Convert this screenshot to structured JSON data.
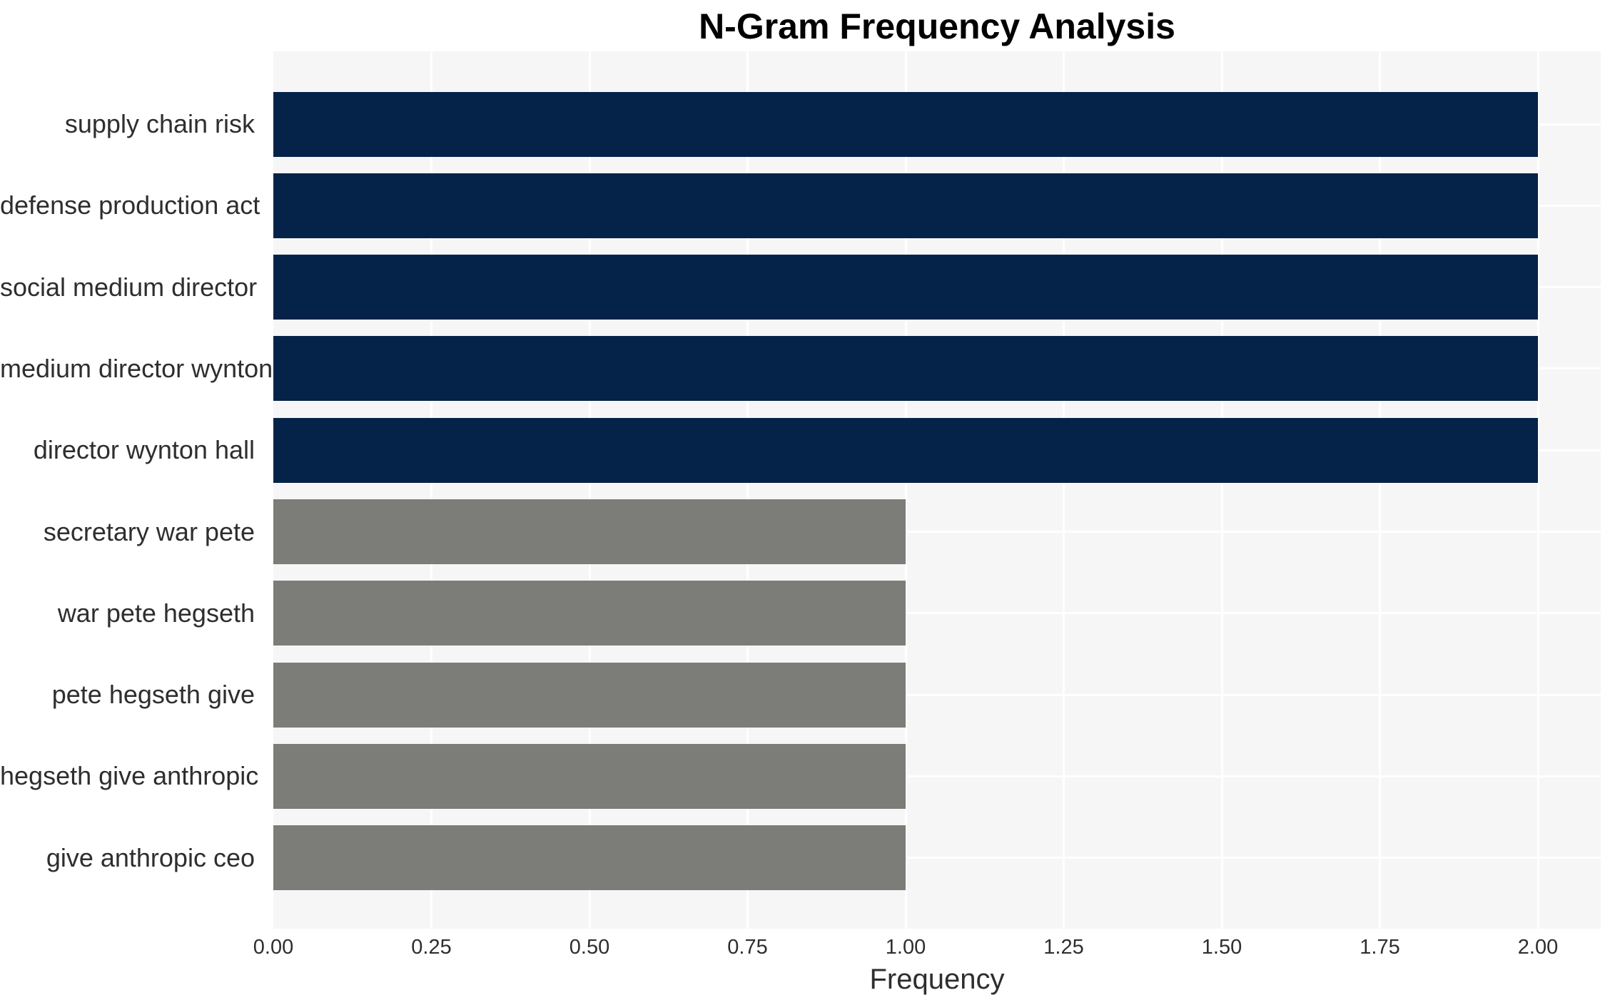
{
  "chart_data": {
    "type": "bar",
    "orientation": "horizontal",
    "title": "N-Gram Frequency Analysis",
    "xlabel": "Frequency",
    "ylabel": "",
    "categories": [
      "supply chain risk",
      "defense production act",
      "social medium director",
      "medium director wynton",
      "director wynton hall",
      "secretary war pete",
      "war pete hegseth",
      "pete hegseth give",
      "hegseth give anthropic",
      "give anthropic ceo"
    ],
    "values": [
      2.0,
      2.0,
      2.0,
      2.0,
      2.0,
      1.0,
      1.0,
      1.0,
      1.0,
      1.0
    ],
    "bar_colors": [
      "#052349",
      "#052349",
      "#052349",
      "#052349",
      "#052349",
      "#7c7c79",
      "#7c7c79",
      "#7c7c79",
      "#7c7c79",
      "#7c7c79"
    ],
    "xlim": [
      0,
      2.1
    ],
    "xticks": [
      0,
      0.25,
      0.5,
      0.75,
      1.0,
      1.25,
      1.5,
      1.75,
      2.0
    ],
    "xtick_labels": [
      "0.00",
      "0.25",
      "0.50",
      "0.75",
      "1.00",
      "1.25",
      "1.50",
      "1.75",
      "2.00"
    ],
    "grid": true,
    "legend_position": "none",
    "colors": {
      "high_frequency_bar": "#052349",
      "low_frequency_bar": "#7c7c79",
      "plot_background": "#f6f6f6",
      "gridline": "#ffffff",
      "figure_background": "#ffffff",
      "text": "#2e2e2e",
      "title_text": "#000000"
    }
  }
}
